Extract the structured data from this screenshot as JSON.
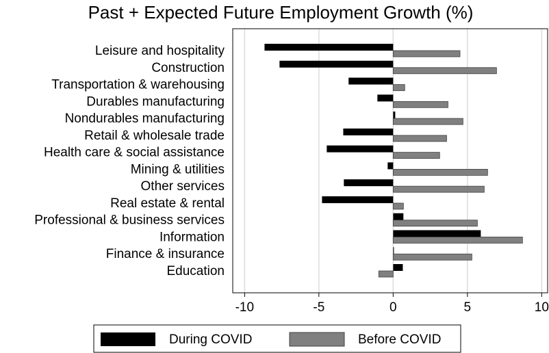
{
  "chart_data": {
    "type": "hbar",
    "title": "Past + Expected Future Employment Growth (%)",
    "categories": [
      "Leisure and hospitality",
      "Construction",
      "Transportation & warehousing",
      "Durables manufacturing",
      "Nondurables manufacturing",
      "Retail & wholesale trade",
      "Health care & social assistance",
      "Mining & utilities",
      "Other services",
      "Real estate & rental",
      "Professional & business services",
      "Information",
      "Finance & insurance",
      "Education"
    ],
    "series": [
      {
        "name": "During COVID",
        "color": "#000000",
        "values": [
          -8.66,
          -7.65,
          -3.0,
          -1.06,
          0.14,
          -3.36,
          -4.47,
          -0.37,
          -3.32,
          -4.79,
          0.69,
          5.9,
          0.05,
          0.65
        ]
      },
      {
        "name": "Before COVID",
        "color": "#808080",
        "values": [
          4.5,
          6.96,
          0.78,
          3.69,
          4.7,
          3.6,
          3.13,
          6.36,
          6.13,
          0.69,
          5.67,
          8.71,
          5.3,
          -0.97
        ]
      }
    ],
    "xlim": [
      -10.8,
      10.4
    ],
    "xticks": [
      -10,
      -5,
      0,
      5,
      10
    ],
    "grid": true,
    "legend": "bottom"
  }
}
